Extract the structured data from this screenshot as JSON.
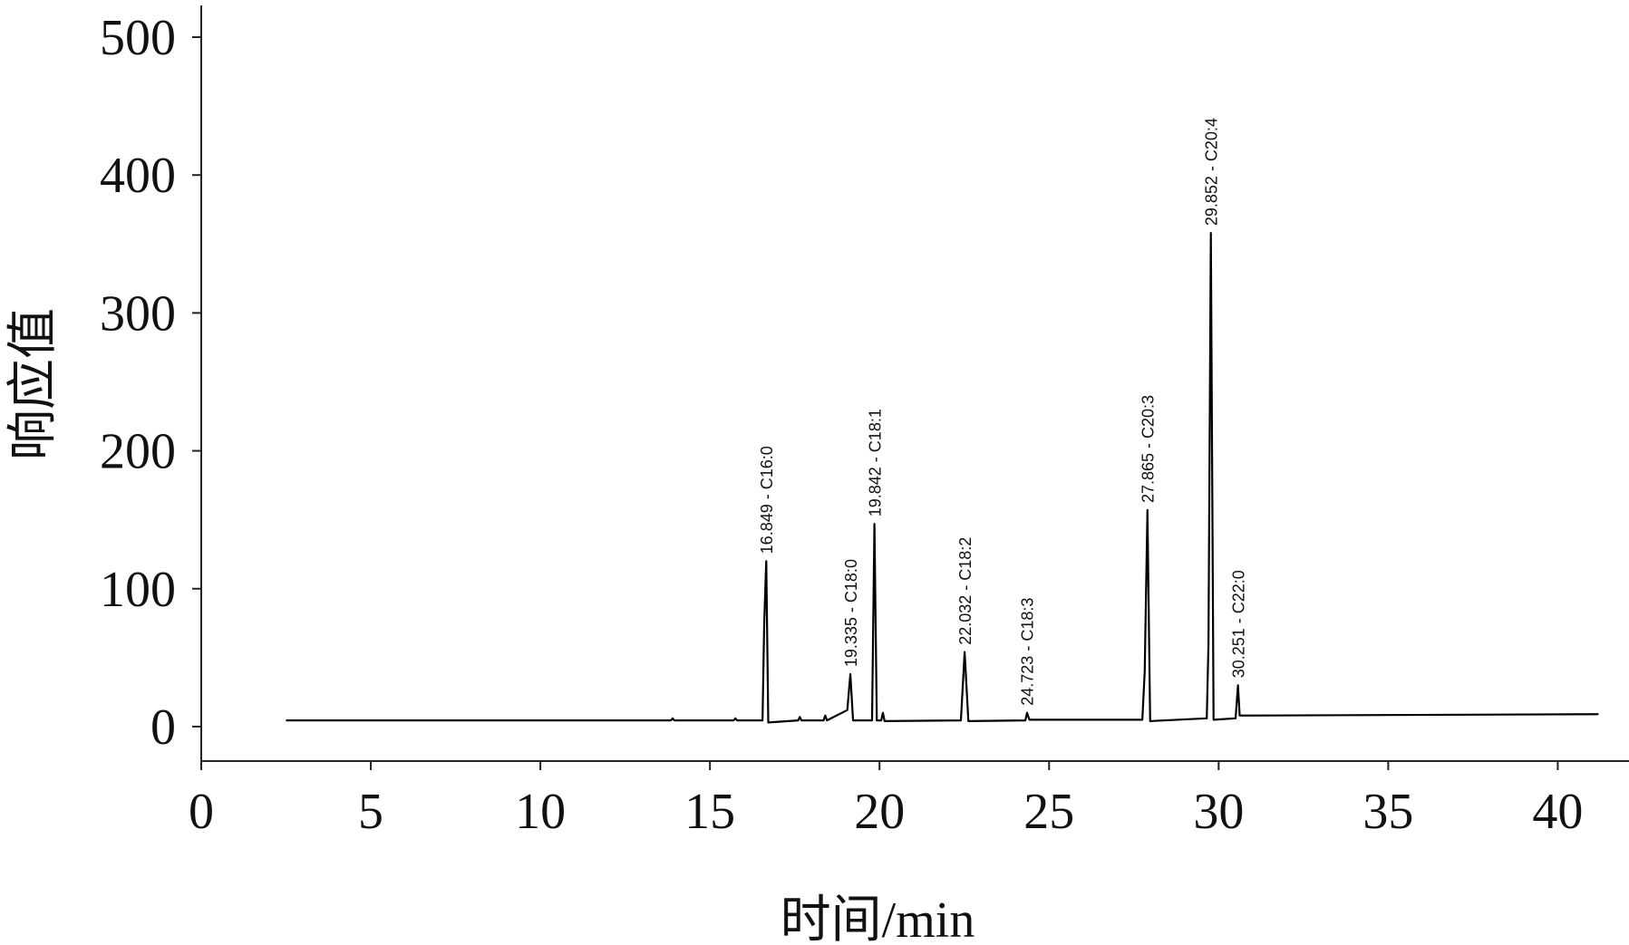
{
  "chart_data": {
    "type": "line",
    "x_label": "时间/min",
    "y_label": "响应值",
    "xlim": [
      0,
      42.1
    ],
    "xticks": [
      0,
      5,
      10,
      15,
      20,
      25,
      30,
      35,
      40
    ],
    "ylim": [
      -25,
      523
    ],
    "yticks": [
      0,
      100,
      200,
      300,
      400,
      500
    ],
    "series": [
      {
        "color": "#000000",
        "x": [
          2.5,
          13.85,
          13.9,
          13.95,
          15.7,
          15.75,
          15.8,
          16.55,
          16.6,
          16.66,
          16.72,
          17.6,
          17.65,
          17.7,
          18.35,
          18.4,
          18.45,
          19.05,
          19.14,
          19.22,
          19.78,
          19.85,
          19.92,
          20.05,
          20.1,
          20.15,
          22.4,
          22.51,
          22.62,
          24.3,
          24.35,
          24.42,
          27.75,
          27.82,
          27.9,
          27.98,
          29.65,
          29.7,
          29.77,
          29.85,
          30.5,
          30.57,
          30.62,
          41.2
        ],
        "values": [
          4.5,
          4.5,
          6,
          4.5,
          4.5,
          6,
          4.5,
          4.5,
          75,
          120,
          3,
          4.5,
          7,
          4.5,
          4.5,
          8,
          4.5,
          12,
          38,
          4.5,
          4.5,
          147,
          4.5,
          4.5,
          10,
          4,
          4.5,
          54,
          4,
          4.5,
          10,
          5,
          5,
          40,
          157,
          4,
          6,
          60,
          358,
          5,
          6,
          30,
          8,
          9
        ]
      }
    ],
    "annotations": [
      {
        "text": "16.849 - C16:0",
        "x": 16.66,
        "y": 120
      },
      {
        "text": "19.335 - C18:0",
        "x": 19.14,
        "y": 38
      },
      {
        "text": "19.842 - C18:1",
        "x": 19.85,
        "y": 147
      },
      {
        "text": "22.032 - C18:2",
        "x": 22.51,
        "y": 54
      },
      {
        "text": "24.723 - C18:3",
        "x": 24.35,
        "y": 10
      },
      {
        "text": "27.865 - C20:3",
        "x": 27.9,
        "y": 157
      },
      {
        "text": "29.852 - C20:4",
        "x": 29.77,
        "y": 358
      },
      {
        "text": "30.251 - C22:0",
        "x": 30.57,
        "y": 30
      }
    ]
  }
}
